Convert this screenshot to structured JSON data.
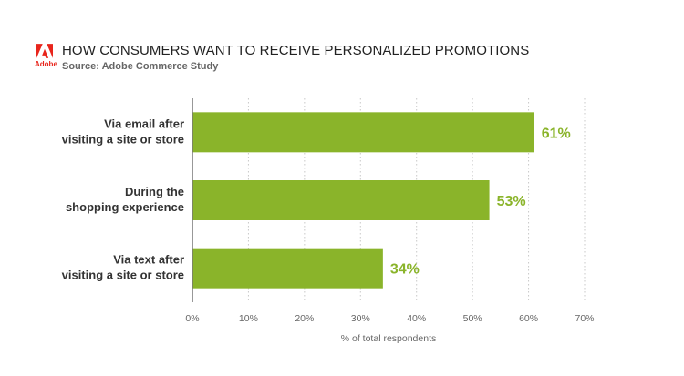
{
  "brand": {
    "logo_text": "Adobe",
    "color": "#e8251c"
  },
  "chart_data": {
    "type": "bar",
    "orientation": "horizontal",
    "title": "HOW CONSUMERS WANT TO RECEIVE PERSONALIZED PROMOTIONS",
    "subtitle": "Source: Adobe Commerce Study",
    "categories": [
      [
        "Via email after",
        "visiting a site or store"
      ],
      [
        "During the",
        "shopping experience"
      ],
      [
        "Via text after",
        "visiting a site or store"
      ]
    ],
    "values": [
      61,
      53,
      34
    ],
    "data_labels": [
      "61%",
      "53%",
      "34%"
    ],
    "xlabel": "% of total respondents",
    "xlim": [
      0,
      70
    ],
    "xticks": [
      0,
      10,
      20,
      30,
      40,
      50,
      60,
      70
    ],
    "xtick_labels": [
      "0%",
      "10%",
      "20%",
      "30%",
      "40%",
      "50%",
      "60%",
      "70%"
    ],
    "bar_color": "#8ab42a",
    "grid": "vertical dotted"
  }
}
